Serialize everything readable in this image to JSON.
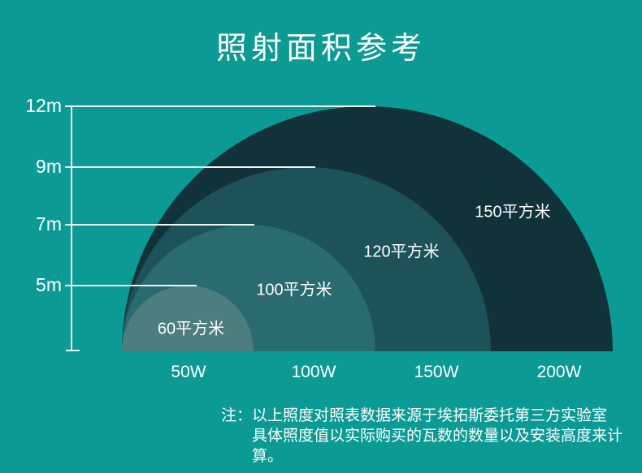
{
  "title": "照射面积参考",
  "colors": {
    "background": "#0c9a95",
    "text": "#ffffff",
    "axis_line": "#eef6f5"
  },
  "note": {
    "prefix": "注：",
    "line1": "以上照度对照表数据来源于埃拓斯委托第三方实验室",
    "line2": "具体照度值以实际购买的瓦数的数量以及安装高度来计算。"
  },
  "chart_data": {
    "type": "area",
    "subtype": "nested-semicircles",
    "title": "照射面积参考",
    "description": "Nested quarter-dome areas showing lamp coverage area (平方米) and mounting height (m) per wattage",
    "x_ticks": [
      "50W",
      "100W",
      "150W",
      "200W"
    ],
    "y_ticks_top_to_bottom": [
      "12m",
      "9m",
      "7m",
      "5m"
    ],
    "y_unit": "m",
    "grid": "partial horizontal gridlines ending at each dome apex",
    "legend_position": "none",
    "series": [
      {
        "wattage": "50W",
        "area_label": "60平方米",
        "area_sqm": 60,
        "height_m": 5,
        "color": "#4d7e7f"
      },
      {
        "wattage": "100W",
        "area_label": "100平方米",
        "area_sqm": 100,
        "height_m": 7,
        "color": "#296b6f"
      },
      {
        "wattage": "150W",
        "area_label": "120平方米",
        "area_sqm": 120,
        "height_m": 9,
        "color": "#1c5258"
      },
      {
        "wattage": "200W",
        "area_label": "150平方米",
        "area_sqm": 150,
        "height_m": 12,
        "color": "#12323a"
      }
    ]
  }
}
